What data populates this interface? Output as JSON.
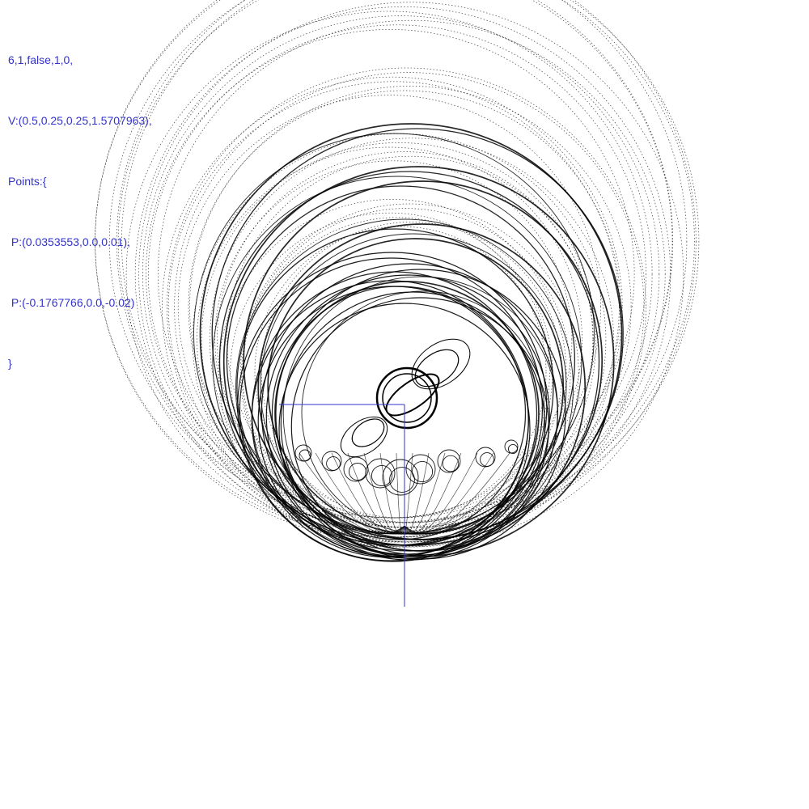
{
  "params": {
    "header_line": "6,1,false,1,0,",
    "v_line": "V:(0.5,0.25,0.25,1.5707963),",
    "points_open": "Points:{",
    "points": [
      " P:(0.0353553,0.0,0.01),",
      " P:(-0.1767766,0.0,-0.02)"
    ],
    "points_close": "}"
  },
  "colors": {
    "text": "#3333cc",
    "axes": "#3333cc",
    "trace": "#000000",
    "background": "#ffffff"
  }
}
